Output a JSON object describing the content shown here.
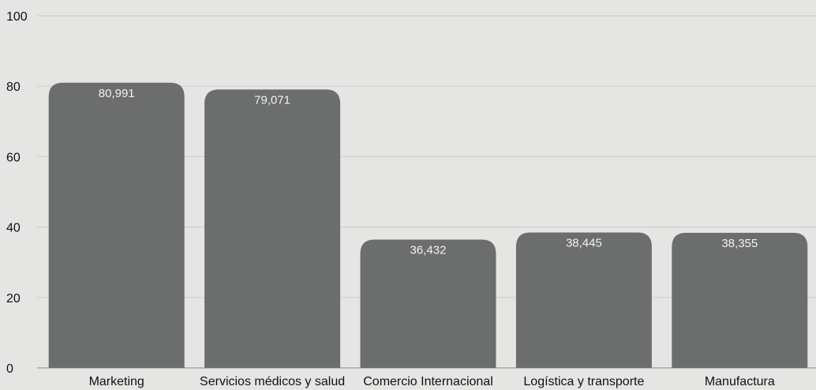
{
  "chart_data": {
    "type": "bar",
    "title": "",
    "xlabel": "",
    "ylabel": "",
    "categories": [
      "Marketing",
      "Servicios médicos y salud",
      "Comercio Internacional",
      "Logística y transporte",
      "Manufactura"
    ],
    "values": [
      80.991,
      79.071,
      36.432,
      38.445,
      38.355
    ],
    "data_labels": [
      "80,991",
      "79,071",
      "36,432",
      "38,445",
      "38,355"
    ],
    "ylim": [
      0,
      100
    ],
    "yticks": [
      "0",
      "20",
      "40",
      "60",
      "80",
      "100"
    ],
    "grid": true,
    "legend": "none",
    "colors": {
      "bar": "#6b6e6d",
      "background": "#e5e5e4",
      "grid": "#cfcfcd",
      "data_label": "#f2f2f2",
      "tick_text": "#111111"
    }
  }
}
